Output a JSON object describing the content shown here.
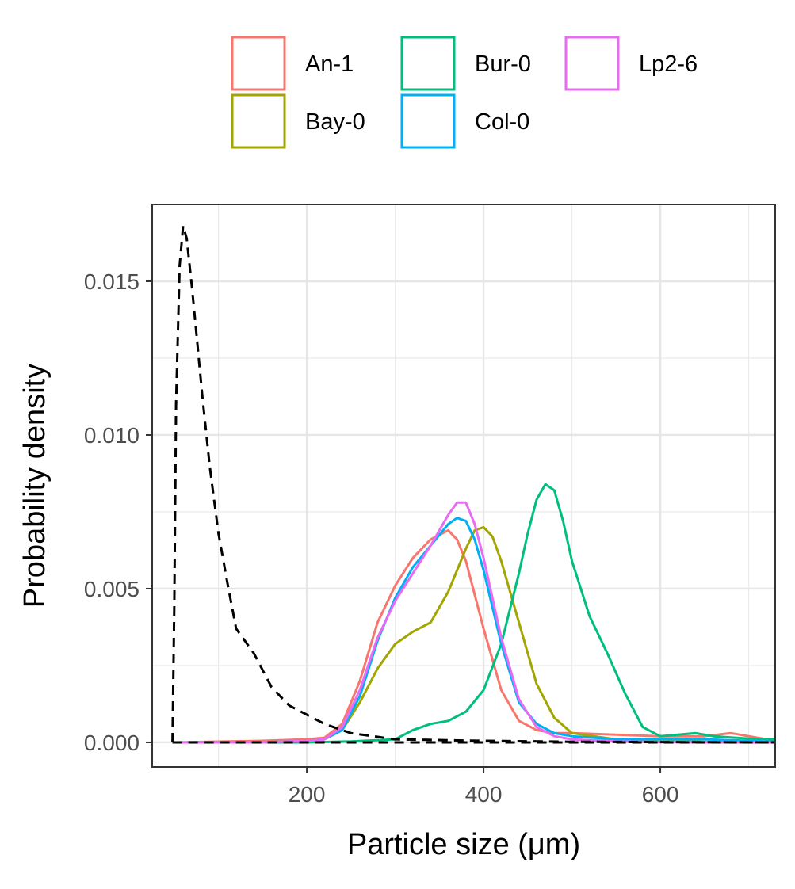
{
  "chart_data": {
    "type": "line",
    "xlabel": "Particle size (μm)",
    "ylabel": "Probability density",
    "xlim": [
      25,
      730
    ],
    "ylim": [
      -0.0008,
      0.0175
    ],
    "x_ticks": [
      200,
      400,
      600
    ],
    "x_tick_labels": [
      "200",
      "400",
      "600"
    ],
    "y_ticks": [
      0.0,
      0.005,
      0.01,
      0.015
    ],
    "y_tick_labels": [
      "0.000",
      "0.005",
      "0.010",
      "0.015"
    ],
    "grid": true,
    "legend_position": "top",
    "series": [
      {
        "name": "An-1",
        "color": "#F8766D",
        "x": [
          50,
          150,
          200,
          220,
          240,
          260,
          280,
          300,
          320,
          340,
          360,
          370,
          380,
          400,
          420,
          440,
          460,
          480,
          500,
          550,
          600,
          650,
          680,
          700,
          730
        ],
        "y": [
          0,
          5e-05,
          0.0001,
          0.00015,
          0.0006,
          0.002,
          0.0039,
          0.0051,
          0.006,
          0.0066,
          0.0069,
          0.0066,
          0.0059,
          0.0037,
          0.0017,
          0.0007,
          0.0004,
          0.0003,
          0.0003,
          0.00025,
          0.0002,
          0.0002,
          0.0003,
          0.0002,
          5e-05
        ]
      },
      {
        "name": "Bay-0",
        "color": "#A3A500",
        "x": [
          50,
          150,
          200,
          220,
          240,
          260,
          280,
          300,
          320,
          340,
          360,
          380,
          390,
          400,
          410,
          420,
          440,
          460,
          480,
          500,
          550,
          600,
          650,
          700,
          730
        ],
        "y": [
          0,
          0,
          5e-05,
          0.0001,
          0.0004,
          0.0013,
          0.0024,
          0.0032,
          0.0036,
          0.0039,
          0.0049,
          0.0063,
          0.0069,
          0.007,
          0.0067,
          0.0059,
          0.0039,
          0.0019,
          0.0008,
          0.0003,
          0.0001,
          5e-05,
          2e-05,
          0,
          0
        ]
      },
      {
        "name": "Bur-0",
        "color": "#00BF7D",
        "x": [
          50,
          200,
          250,
          300,
          320,
          340,
          360,
          380,
          400,
          420,
          440,
          450,
          460,
          470,
          480,
          490,
          500,
          520,
          540,
          560,
          580,
          600,
          620,
          640,
          660,
          700,
          730
        ],
        "y": [
          0,
          0,
          3e-05,
          0.0001,
          0.0004,
          0.0006,
          0.0007,
          0.001,
          0.0017,
          0.0032,
          0.0055,
          0.0068,
          0.0079,
          0.0084,
          0.0082,
          0.0072,
          0.0059,
          0.0041,
          0.0029,
          0.0016,
          0.0005,
          0.0002,
          0.00025,
          0.0003,
          0.0002,
          0.00012,
          0.0001
        ]
      },
      {
        "name": "Col-0",
        "color": "#00B0F6",
        "x": [
          50,
          150,
          200,
          220,
          240,
          260,
          280,
          300,
          320,
          340,
          360,
          370,
          380,
          390,
          400,
          420,
          440,
          460,
          480,
          500,
          550,
          600,
          650,
          700,
          730
        ],
        "y": [
          0,
          0,
          5e-05,
          0.0001,
          0.0004,
          0.0015,
          0.0033,
          0.0047,
          0.0057,
          0.0064,
          0.0071,
          0.0073,
          0.0072,
          0.0066,
          0.0056,
          0.0032,
          0.0013,
          0.0006,
          0.0003,
          0.0002,
          0.0001,
          0.0001,
          0.0001,
          5e-05,
          2e-05
        ]
      },
      {
        "name": "Lp2-6",
        "color": "#E76BF3",
        "x": [
          50,
          150,
          200,
          220,
          240,
          260,
          280,
          300,
          320,
          340,
          360,
          370,
          380,
          390,
          400,
          420,
          440,
          460,
          480,
          500,
          550,
          600,
          650,
          700,
          730
        ],
        "y": [
          0,
          0,
          5e-05,
          0.0001,
          0.0005,
          0.0017,
          0.0034,
          0.0046,
          0.0055,
          0.0064,
          0.0074,
          0.0078,
          0.0078,
          0.0071,
          0.006,
          0.0034,
          0.0014,
          0.0005,
          0.0002,
          0.0001,
          3e-05,
          1e-05,
          0,
          0,
          0
        ]
      },
      {
        "name": "",
        "color": "#000000",
        "dashed": true,
        "x": [
          48,
          50,
          52,
          56,
          60,
          64,
          70,
          76,
          82,
          90,
          100,
          110,
          120,
          140,
          160,
          180,
          200,
          220,
          250,
          300,
          400,
          500,
          600,
          730
        ],
        "y": [
          0,
          0.0045,
          0.011,
          0.0155,
          0.0168,
          0.0164,
          0.0148,
          0.013,
          0.0112,
          0.009,
          0.0068,
          0.0052,
          0.0037,
          0.0029,
          0.0018,
          0.0012,
          0.0009,
          0.0006,
          0.0003,
          0.0001,
          5e-05,
          2e-05,
          1e-05,
          0
        ]
      },
      {
        "name": "",
        "color": "#000000",
        "dashed": true,
        "x": [
          48,
          730
        ],
        "y": [
          0,
          0
        ]
      }
    ]
  }
}
